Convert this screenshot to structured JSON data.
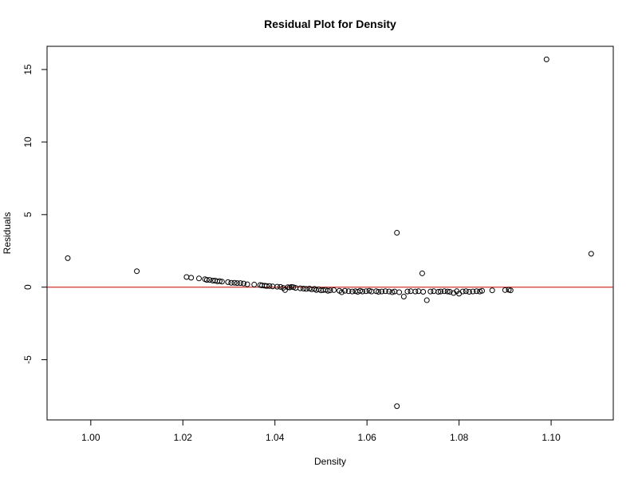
{
  "chart_data": {
    "type": "scatter",
    "title": "Residual Plot for Density",
    "xlabel": "Density",
    "ylabel": "Residuals",
    "xlim": [
      0.9905,
      1.1135
    ],
    "ylim": [
      -9.15,
      16.6
    ],
    "x_ticks": [
      {
        "value": 1.0,
        "label": "1.00"
      },
      {
        "value": 1.02,
        "label": "1.02"
      },
      {
        "value": 1.04,
        "label": "1.04"
      },
      {
        "value": 1.06,
        "label": "1.06"
      },
      {
        "value": 1.08,
        "label": "1.08"
      },
      {
        "value": 1.1,
        "label": "1.10"
      }
    ],
    "y_ticks": [
      {
        "value": -5,
        "label": "-5"
      },
      {
        "value": 0,
        "label": "0"
      },
      {
        "value": 5,
        "label": "5"
      },
      {
        "value": 10,
        "label": "10"
      },
      {
        "value": 15,
        "label": "15"
      }
    ],
    "reference_line": {
      "y": 0,
      "color": "#cc0000"
    },
    "grid": false,
    "points": [
      [
        0.995,
        2.0
      ],
      [
        1.01,
        1.1
      ],
      [
        1.0208,
        0.7
      ],
      [
        1.0218,
        0.65
      ],
      [
        1.0235,
        0.6
      ],
      [
        1.0248,
        0.55
      ],
      [
        1.0252,
        0.5
      ],
      [
        1.0258,
        0.5
      ],
      [
        1.0265,
        0.45
      ],
      [
        1.027,
        0.45
      ],
      [
        1.0275,
        0.4
      ],
      [
        1.028,
        0.42
      ],
      [
        1.0285,
        0.38
      ],
      [
        1.0298,
        0.35
      ],
      [
        1.0305,
        0.3
      ],
      [
        1.0312,
        0.3
      ],
      [
        1.0318,
        0.28
      ],
      [
        1.0325,
        0.28
      ],
      [
        1.0332,
        0.25
      ],
      [
        1.034,
        0.2
      ],
      [
        1.0355,
        0.18
      ],
      [
        1.0368,
        0.15
      ],
      [
        1.0372,
        0.12
      ],
      [
        1.0378,
        0.1
      ],
      [
        1.0382,
        0.08
      ],
      [
        1.0388,
        0.08
      ],
      [
        1.0395,
        0.05
      ],
      [
        1.0405,
        0.03
      ],
      [
        1.0412,
        0.02
      ],
      [
        1.0418,
        -0.05
      ],
      [
        1.0422,
        -0.2
      ],
      [
        1.0428,
        0.0
      ],
      [
        1.0432,
        -0.02
      ],
      [
        1.0436,
        0.02
      ],
      [
        1.044,
        0.0
      ],
      [
        1.0445,
        -0.05
      ],
      [
        1.0455,
        -0.08
      ],
      [
        1.0462,
        -0.1
      ],
      [
        1.0468,
        -0.12
      ],
      [
        1.0475,
        -0.1
      ],
      [
        1.048,
        -0.15
      ],
      [
        1.0486,
        -0.12
      ],
      [
        1.049,
        -0.2
      ],
      [
        1.0495,
        -0.15
      ],
      [
        1.05,
        -0.22
      ],
      [
        1.0505,
        -0.2
      ],
      [
        1.051,
        -0.18
      ],
      [
        1.0515,
        -0.25
      ],
      [
        1.052,
        -0.22
      ],
      [
        1.0528,
        -0.2
      ],
      [
        1.054,
        -0.25
      ],
      [
        1.0545,
        -0.35
      ],
      [
        1.0552,
        -0.25
      ],
      [
        1.056,
        -0.28
      ],
      [
        1.0568,
        -0.3
      ],
      [
        1.0575,
        -0.28
      ],
      [
        1.058,
        -0.32
      ],
      [
        1.0585,
        -0.25
      ],
      [
        1.059,
        -0.3
      ],
      [
        1.0598,
        -0.28
      ],
      [
        1.0605,
        -0.25
      ],
      [
        1.061,
        -0.3
      ],
      [
        1.062,
        -0.28
      ],
      [
        1.0625,
        -0.32
      ],
      [
        1.0632,
        -0.3
      ],
      [
        1.064,
        -0.28
      ],
      [
        1.0648,
        -0.3
      ],
      [
        1.0655,
        -0.35
      ],
      [
        1.066,
        -0.3
      ],
      [
        1.0665,
        3.75
      ],
      [
        1.0665,
        -8.2
      ],
      [
        1.067,
        -0.35
      ],
      [
        1.068,
        -0.65
      ],
      [
        1.0688,
        -0.3
      ],
      [
        1.0695,
        -0.28
      ],
      [
        1.0705,
        -0.3
      ],
      [
        1.0712,
        -0.28
      ],
      [
        1.072,
        0.95
      ],
      [
        1.0722,
        -0.32
      ],
      [
        1.073,
        -0.9
      ],
      [
        1.0738,
        -0.3
      ],
      [
        1.0745,
        -0.28
      ],
      [
        1.0755,
        -0.32
      ],
      [
        1.076,
        -0.3
      ],
      [
        1.0768,
        -0.28
      ],
      [
        1.0775,
        -0.3
      ],
      [
        1.078,
        -0.32
      ],
      [
        1.0788,
        -0.4
      ],
      [
        1.0795,
        -0.28
      ],
      [
        1.08,
        -0.45
      ],
      [
        1.0808,
        -0.3
      ],
      [
        1.0815,
        -0.28
      ],
      [
        1.0822,
        -0.32
      ],
      [
        1.083,
        -0.3
      ],
      [
        1.0838,
        -0.28
      ],
      [
        1.0845,
        -0.3
      ],
      [
        1.085,
        -0.25
      ],
      [
        1.0872,
        -0.22
      ],
      [
        1.09,
        -0.2
      ],
      [
        1.0908,
        -0.18
      ],
      [
        1.0912,
        -0.22
      ],
      [
        1.099,
        15.7
      ],
      [
        1.1087,
        2.3
      ]
    ]
  }
}
